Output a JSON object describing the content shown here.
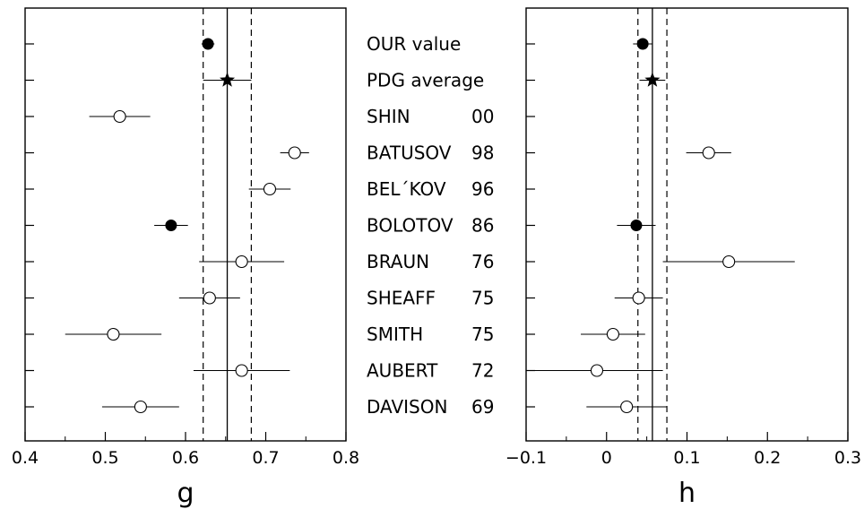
{
  "chart_data": [
    {
      "type": "scatter",
      "xlabel": "g",
      "xlim": [
        0.4,
        0.8
      ],
      "xticks": [
        "0.4",
        "0.5",
        "0.6",
        "0.7",
        "0.8"
      ],
      "reference_value": 0.652,
      "reference_band": [
        0.622,
        0.682
      ],
      "points": [
        {
          "row": "OUR value",
          "x": 0.628,
          "err": 0.008,
          "marker": "filled-circle"
        },
        {
          "row": "PDG average",
          "x": 0.652,
          "err": 0.03,
          "marker": "star"
        },
        {
          "row": "SHIN 00",
          "x": 0.518,
          "err": 0.038,
          "marker": "open-circle"
        },
        {
          "row": "BATUSOV 98",
          "x": 0.736,
          "err": 0.018,
          "marker": "open-circle"
        },
        {
          "row": "BEL'KOV 96",
          "x": 0.705,
          "err": 0.026,
          "marker": "open-circle"
        },
        {
          "row": "BOLOTOV 86",
          "x": 0.582,
          "err": 0.021,
          "marker": "filled-circle"
        },
        {
          "row": "BRAUN 76",
          "x": 0.67,
          "err": 0.053,
          "marker": "open-circle"
        },
        {
          "row": "SHEAFF 75",
          "x": 0.63,
          "err": 0.038,
          "marker": "open-circle"
        },
        {
          "row": "SMITH 75",
          "x": 0.51,
          "err": 0.06,
          "marker": "open-circle"
        },
        {
          "row": "AUBERT 72",
          "x": 0.67,
          "err": 0.06,
          "marker": "open-circle"
        },
        {
          "row": "DAVISON 69",
          "x": 0.544,
          "err": 0.048,
          "marker": "open-circle"
        }
      ]
    },
    {
      "type": "scatter",
      "xlabel": "h",
      "xlim": [
        -0.1,
        0.3
      ],
      "xticks": [
        "−0.1",
        "0",
        "0.1",
        "0.2",
        "0.3"
      ],
      "reference_value": 0.057,
      "reference_band": [
        0.039,
        0.075
      ],
      "points": [
        {
          "row": "OUR value",
          "x": 0.045,
          "err": 0.012,
          "marker": "filled-circle"
        },
        {
          "row": "PDG average",
          "x": 0.057,
          "err": 0.016,
          "marker": "star"
        },
        {
          "row": "BATUSOV 98",
          "x": 0.127,
          "err": 0.028,
          "marker": "open-circle"
        },
        {
          "row": "BOLOTOV 86",
          "x": 0.037,
          "err": 0.024,
          "marker": "filled-circle"
        },
        {
          "row": "BRAUN 76",
          "x": 0.152,
          "err": 0.082,
          "marker": "open-circle"
        },
        {
          "row": "SHEAFF 75",
          "x": 0.04,
          "err": 0.03,
          "marker": "open-circle"
        },
        {
          "row": "SMITH 75",
          "x": 0.008,
          "err": 0.04,
          "marker": "open-circle"
        },
        {
          "row": "AUBERT 72",
          "x": -0.012,
          "err": 0.082,
          "marker": "open-circle"
        },
        {
          "row": "DAVISON 69",
          "x": 0.025,
          "err": 0.05,
          "marker": "open-circle"
        }
      ]
    }
  ],
  "rows": [
    {
      "name": "OUR value",
      "year": ""
    },
    {
      "name": "PDG average",
      "year": ""
    },
    {
      "name": "SHIN",
      "year": "00"
    },
    {
      "name": "BATUSOV",
      "year": "98"
    },
    {
      "name": "BEL´KOV",
      "year": "96"
    },
    {
      "name": "BOLOTOV",
      "year": "86"
    },
    {
      "name": "BRAUN",
      "year": "76"
    },
    {
      "name": "SHEAFF",
      "year": "75"
    },
    {
      "name": "SMITH",
      "year": "75"
    },
    {
      "name": "AUBERT",
      "year": "72"
    },
    {
      "name": "DAVISON",
      "year": "69"
    }
  ]
}
